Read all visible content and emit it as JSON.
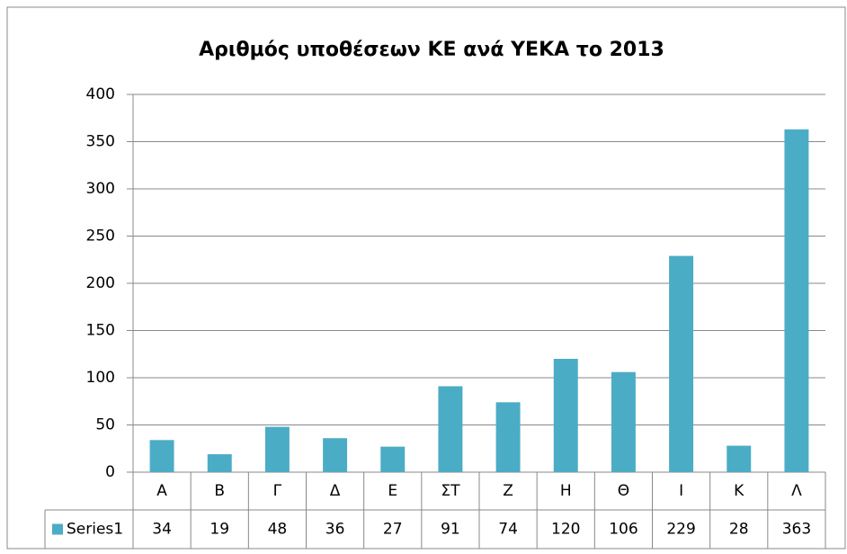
{
  "chart_data": {
    "type": "bar",
    "title": "Αριθμός υποθέσεων ΚΕ ανά ΥΕΚΑ το 2013",
    "categories": [
      "Α",
      "Β",
      "Γ",
      "Δ",
      "Ε",
      "ΣΤ",
      "Ζ",
      "Η",
      "Θ",
      "Ι",
      "Κ",
      "Λ"
    ],
    "series": [
      {
        "name": "Series1",
        "color": "#4bacc6",
        "values": [
          34,
          19,
          48,
          36,
          27,
          91,
          74,
          120,
          106,
          229,
          28,
          363
        ]
      }
    ],
    "ylim": [
      0,
      400
    ],
    "yticks": [
      0,
      50,
      100,
      150,
      200,
      250,
      300,
      350,
      400
    ],
    "grid": true,
    "data_table": true
  }
}
